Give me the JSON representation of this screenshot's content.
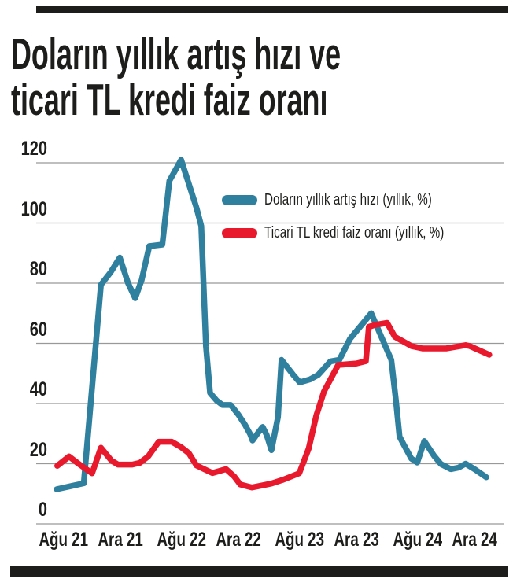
{
  "header": {
    "title_line1": "Doların yıllık artış hızı ve",
    "title_line2": "ticari TL kredi faiz oranı"
  },
  "colors": {
    "blue_series": "#2f7f9e",
    "red_series": "#e8192d",
    "gridline": "#999999",
    "text": "#1d1d1b",
    "background": "#ffffff"
  },
  "chart_data": {
    "type": "line",
    "title": "Doların yıllık artış hızı ve ticari TL kredi faiz oranı",
    "xlabel": "",
    "ylabel": "",
    "ylim": [
      0,
      120
    ],
    "yticks": [
      0,
      20,
      40,
      60,
      80,
      100,
      120
    ],
    "grid": true,
    "legend_position": "upper-right-inside",
    "x_unit": "tick_index (0 = Ağu 21 ... 7 = Ara 24, evenly spaced)",
    "x_tick_labels": [
      "Ağu 21",
      "Ara 21",
      "Ağu 22",
      "Ara 22",
      "Ağu 23",
      "Ara 23",
      "Ağu 24",
      "Ara 24"
    ],
    "series": [
      {
        "name": "Doların yıllık artış hızı (yıllık, %)",
        "color": "#2f7f9e",
        "points": [
          [
            -0.08,
            11.5
          ],
          [
            0.15,
            12.5
          ],
          [
            0.38,
            13.5
          ],
          [
            0.67,
            79.5
          ],
          [
            0.83,
            83.5
          ],
          [
            0.99,
            88.5
          ],
          [
            1.13,
            80.0
          ],
          [
            1.25,
            75.0
          ],
          [
            1.36,
            81.0
          ],
          [
            1.49,
            92.3
          ],
          [
            1.71,
            92.8
          ],
          [
            1.83,
            114.0
          ],
          [
            2.03,
            121.0
          ],
          [
            2.29,
            105.0
          ],
          [
            2.37,
            99.0
          ],
          [
            2.45,
            59.0
          ],
          [
            2.52,
            43.5
          ],
          [
            2.63,
            41.0
          ],
          [
            2.73,
            39.5
          ],
          [
            2.87,
            39.5
          ],
          [
            3.0,
            36.3
          ],
          [
            3.11,
            33.0
          ],
          [
            3.2,
            29.8
          ],
          [
            3.24,
            27.7
          ],
          [
            3.33,
            30.2
          ],
          [
            3.41,
            32.2
          ],
          [
            3.48,
            29.5
          ],
          [
            3.56,
            24.5
          ],
          [
            3.67,
            35.5
          ],
          [
            3.73,
            54.5
          ],
          [
            3.93,
            49.5
          ],
          [
            4.04,
            47.0
          ],
          [
            4.21,
            48.0
          ],
          [
            4.35,
            49.5
          ],
          [
            4.56,
            54.0
          ],
          [
            4.71,
            54.5
          ],
          [
            4.89,
            61.5
          ],
          [
            5.25,
            70.0
          ],
          [
            5.59,
            54.5
          ],
          [
            5.67,
            40.8
          ],
          [
            5.73,
            29.0
          ],
          [
            5.8,
            26.4
          ],
          [
            5.93,
            21.7
          ],
          [
            6.03,
            20.4
          ],
          [
            6.15,
            27.5
          ],
          [
            6.32,
            22.5
          ],
          [
            6.43,
            19.9
          ],
          [
            6.6,
            18.2
          ],
          [
            6.73,
            18.7
          ],
          [
            6.85,
            20.0
          ],
          [
            7.0,
            18.2
          ],
          [
            7.2,
            15.5
          ]
        ]
      },
      {
        "name": "Ticari TL kredi faiz oranı (yıllık, %)",
        "color": "#e8192d",
        "points": [
          [
            -0.07,
            19.3
          ],
          [
            0.13,
            22.4
          ],
          [
            0.27,
            20.3
          ],
          [
            0.52,
            16.8
          ],
          [
            0.67,
            25.3
          ],
          [
            0.85,
            21.0
          ],
          [
            0.96,
            19.7
          ],
          [
            1.2,
            19.7
          ],
          [
            1.33,
            20.3
          ],
          [
            1.47,
            22.4
          ],
          [
            1.65,
            27.3
          ],
          [
            1.87,
            27.3
          ],
          [
            2.03,
            25.5
          ],
          [
            2.16,
            23.5
          ],
          [
            2.29,
            19.4
          ],
          [
            2.56,
            16.9
          ],
          [
            2.79,
            18.2
          ],
          [
            2.93,
            15.7
          ],
          [
            3.03,
            13.1
          ],
          [
            3.23,
            12.1
          ],
          [
            3.43,
            12.9
          ],
          [
            3.56,
            13.4
          ],
          [
            3.76,
            14.7
          ],
          [
            4.03,
            16.8
          ],
          [
            4.19,
            25.0
          ],
          [
            4.32,
            36.0
          ],
          [
            4.45,
            44.0
          ],
          [
            4.69,
            52.8
          ],
          [
            5.0,
            53.3
          ],
          [
            5.16,
            54.1
          ],
          [
            5.21,
            65.5
          ],
          [
            5.33,
            66.2
          ],
          [
            5.52,
            66.8
          ],
          [
            5.65,
            62.2
          ],
          [
            5.93,
            59.1
          ],
          [
            6.12,
            58.3
          ],
          [
            6.52,
            58.3
          ],
          [
            6.85,
            59.4
          ],
          [
            6.92,
            59.1
          ],
          [
            7.25,
            56.2
          ]
        ]
      }
    ]
  }
}
